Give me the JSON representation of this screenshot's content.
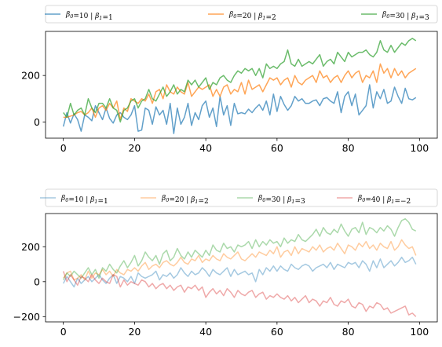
{
  "chart_data": [
    {
      "type": "line",
      "title": "",
      "xlabel": "",
      "ylabel": "",
      "xlim": [
        -5,
        105
      ],
      "ylim": [
        -70,
        390
      ],
      "xticks": [
        0,
        20,
        40,
        60,
        80,
        100
      ],
      "yticks": [
        0,
        200
      ],
      "grid": false,
      "legend_position": "above, spanning width, 3 columns",
      "line_alpha": 0.7,
      "x": [
        0,
        1,
        2,
        3,
        4,
        5,
        6,
        7,
        8,
        9,
        10,
        11,
        12,
        13,
        14,
        15,
        16,
        17,
        18,
        19,
        20,
        21,
        22,
        23,
        24,
        25,
        26,
        27,
        28,
        29,
        30,
        31,
        32,
        33,
        34,
        35,
        36,
        37,
        38,
        39,
        40,
        41,
        42,
        43,
        44,
        45,
        46,
        47,
        48,
        49,
        50,
        51,
        52,
        53,
        54,
        55,
        56,
        57,
        58,
        59,
        60,
        61,
        62,
        63,
        64,
        65,
        66,
        67,
        68,
        69,
        70,
        71,
        72,
        73,
        74,
        75,
        76,
        77,
        78,
        79,
        80,
        81,
        82,
        83,
        84,
        85,
        86,
        87,
        88,
        89,
        90,
        91,
        92,
        93,
        94,
        95,
        96,
        97,
        98,
        99
      ],
      "series": [
        {
          "name": "β0=10 | β1=1",
          "color": "#1f77b4",
          "values": [
            -20,
            40,
            -5,
            35,
            10,
            -40,
            30,
            20,
            5,
            70,
            40,
            10,
            60,
            15,
            -5,
            30,
            40,
            20,
            10,
            30,
            70,
            -40,
            -35,
            60,
            50,
            -10,
            65,
            30,
            50,
            -10,
            80,
            -50,
            60,
            -10,
            20,
            80,
            -15,
            40,
            10,
            70,
            90,
            20,
            60,
            -20,
            110,
            30,
            70,
            -15,
            80,
            35,
            40,
            35,
            55,
            40,
            60,
            75,
            50,
            90,
            30,
            120,
            45,
            110,
            75,
            50,
            70,
            110,
            90,
            100,
            80,
            80,
            90,
            95,
            70,
            100,
            105,
            90,
            80,
            130,
            40,
            110,
            130,
            70,
            120,
            30,
            50,
            70,
            160,
            60,
            130,
            100,
            140,
            80,
            90,
            150,
            110,
            80,
            145,
            100,
            95,
            105
          ]
        },
        {
          "name": "β0=20 | β1=2",
          "color": "#ff7f0e",
          "values": [
            20,
            20,
            25,
            30,
            40,
            45,
            30,
            40,
            60,
            20,
            60,
            70,
            50,
            80,
            60,
            90,
            10,
            60,
            45,
            100,
            90,
            80,
            100,
            90,
            120,
            80,
            130,
            140,
            100,
            160,
            130,
            120,
            150,
            130,
            120,
            170,
            110,
            130,
            150,
            140,
            150,
            160,
            110,
            140,
            110,
            150,
            160,
            120,
            140,
            130,
            170,
            120,
            180,
            140,
            150,
            160,
            130,
            160,
            190,
            180,
            190,
            160,
            180,
            190,
            150,
            200,
            170,
            160,
            180,
            190,
            200,
            170,
            220,
            190,
            200,
            170,
            190,
            200,
            170,
            200,
            220,
            190,
            210,
            220,
            170,
            200,
            190,
            220,
            170,
            250,
            210,
            230,
            190,
            230,
            200,
            220,
            190,
            210,
            220,
            230
          ]
        },
        {
          "name": "β0=30 | β1=3",
          "color": "#2ca02c",
          "values": [
            40,
            20,
            80,
            30,
            50,
            60,
            30,
            100,
            60,
            40,
            80,
            80,
            60,
            100,
            60,
            50,
            0,
            50,
            60,
            90,
            100,
            60,
            90,
            100,
            140,
            100,
            90,
            120,
            150,
            110,
            130,
            160,
            120,
            140,
            130,
            180,
            160,
            180,
            150,
            170,
            190,
            140,
            170,
            160,
            190,
            200,
            180,
            170,
            200,
            220,
            210,
            230,
            220,
            230,
            200,
            230,
            190,
            250,
            230,
            240,
            230,
            250,
            260,
            310,
            250,
            240,
            270,
            240,
            250,
            260,
            250,
            270,
            290,
            240,
            260,
            270,
            250,
            300,
            280,
            260,
            300,
            280,
            290,
            300,
            300,
            310,
            290,
            280,
            300,
            350,
            310,
            300,
            330,
            300,
            320,
            340,
            330,
            350,
            360,
            350
          ]
        }
      ]
    },
    {
      "type": "line",
      "title": "",
      "xlabel": "",
      "ylabel": "",
      "xlim": [
        -5,
        105
      ],
      "ylim": [
        -230,
        390
      ],
      "xticks": [
        0,
        20,
        40,
        60,
        80,
        100
      ],
      "yticks": [
        -200,
        0,
        200
      ],
      "grid": false,
      "legend_position": "above, spanning width, 4 columns",
      "line_alpha": 0.4,
      "x": [
        0,
        1,
        2,
        3,
        4,
        5,
        6,
        7,
        8,
        9,
        10,
        11,
        12,
        13,
        14,
        15,
        16,
        17,
        18,
        19,
        20,
        21,
        22,
        23,
        24,
        25,
        26,
        27,
        28,
        29,
        30,
        31,
        32,
        33,
        34,
        35,
        36,
        37,
        38,
        39,
        40,
        41,
        42,
        43,
        44,
        45,
        46,
        47,
        48,
        49,
        50,
        51,
        52,
        53,
        54,
        55,
        56,
        57,
        58,
        59,
        60,
        61,
        62,
        63,
        64,
        65,
        66,
        67,
        68,
        69,
        70,
        71,
        72,
        73,
        74,
        75,
        76,
        77,
        78,
        79,
        80,
        81,
        82,
        83,
        84,
        85,
        86,
        87,
        88,
        89,
        90,
        91,
        92,
        93,
        94,
        95,
        96,
        97,
        98,
        99
      ],
      "series": [
        {
          "name": "β0=10 | β1=1",
          "color": "#1f77b4",
          "values": [
            -10,
            30,
            0,
            -30,
            20,
            -10,
            10,
            30,
            0,
            20,
            40,
            10,
            -10,
            20,
            40,
            -10,
            30,
            20,
            0,
            30,
            -10,
            50,
            30,
            20,
            30,
            40,
            60,
            10,
            40,
            30,
            50,
            20,
            40,
            80,
            50,
            30,
            60,
            40,
            50,
            80,
            60,
            30,
            70,
            50,
            40,
            60,
            80,
            30,
            70,
            40,
            50,
            60,
            40,
            50,
            0,
            70,
            40,
            80,
            60,
            90,
            60,
            90,
            70,
            60,
            100,
            80,
            70,
            90,
            100,
            90,
            60,
            80,
            90,
            100,
            80,
            110,
            70,
            100,
            90,
            80,
            110,
            100,
            110,
            80,
            120,
            100,
            60,
            120,
            80,
            130,
            80,
            100,
            120,
            90,
            110,
            140,
            110,
            120,
            140,
            100
          ]
        },
        {
          "name": "β0=20 | β1=2",
          "color": "#ff7f0e",
          "values": [
            20,
            50,
            60,
            10,
            20,
            40,
            10,
            60,
            20,
            50,
            40,
            70,
            40,
            60,
            30,
            70,
            50,
            40,
            70,
            60,
            80,
            60,
            90,
            110,
            70,
            90,
            100,
            80,
            110,
            120,
            100,
            90,
            110,
            140,
            110,
            100,
            130,
            120,
            150,
            110,
            130,
            120,
            150,
            130,
            120,
            160,
            140,
            130,
            150,
            170,
            130,
            120,
            140,
            160,
            140,
            170,
            160,
            150,
            180,
            160,
            200,
            140,
            170,
            180,
            150,
            200,
            160,
            190,
            180,
            170,
            200,
            180,
            210,
            170,
            190,
            200,
            180,
            220,
            190,
            160,
            210,
            200,
            180,
            220,
            200,
            230,
            190,
            210,
            180,
            220,
            200,
            190,
            230,
            180,
            200,
            240,
            210,
            190,
            200,
            150
          ]
        },
        {
          "name": "β0=30 | β1=3",
          "color": "#2ca02c",
          "values": [
            10,
            50,
            30,
            60,
            40,
            20,
            50,
            80,
            40,
            70,
            20,
            80,
            60,
            100,
            70,
            50,
            90,
            120,
            80,
            110,
            150,
            90,
            120,
            170,
            140,
            120,
            150,
            100,
            160,
            180,
            120,
            140,
            190,
            150,
            130,
            170,
            140,
            180,
            160,
            140,
            180,
            150,
            210,
            180,
            170,
            220,
            190,
            200,
            170,
            210,
            200,
            210,
            230,
            190,
            240,
            200,
            230,
            210,
            240,
            220,
            230,
            200,
            250,
            220,
            240,
            230,
            270,
            240,
            230,
            250,
            270,
            300,
            260,
            310,
            280,
            270,
            300,
            280,
            330,
            290,
            260,
            300,
            310,
            280,
            340,
            270,
            310,
            300,
            280,
            310,
            290,
            320,
            300,
            260,
            310,
            350,
            360,
            340,
            300,
            290
          ]
        },
        {
          "name": "β0=40 | β1=−2",
          "color": "#d62728",
          "values": [
            60,
            0,
            40,
            10,
            -20,
            30,
            20,
            0,
            40,
            10,
            -10,
            20,
            0,
            -10,
            40,
            30,
            -30,
            10,
            -20,
            0,
            -10,
            -20,
            10,
            0,
            -30,
            -10,
            -40,
            -20,
            -10,
            -40,
            -20,
            -50,
            -30,
            -20,
            -60,
            -30,
            -40,
            -20,
            -50,
            -30,
            -90,
            -60,
            -40,
            -70,
            -50,
            -80,
            -40,
            -60,
            -90,
            -50,
            -70,
            -80,
            -60,
            -50,
            -90,
            -70,
            -60,
            -100,
            -80,
            -90,
            -70,
            -90,
            -100,
            -80,
            -110,
            -90,
            -120,
            -100,
            -80,
            -120,
            -100,
            -110,
            -140,
            -110,
            -120,
            -90,
            -130,
            -140,
            -110,
            -120,
            -100,
            -140,
            -150,
            -120,
            -130,
            -170,
            -140,
            -150,
            -120,
            -130,
            -160,
            -150,
            -180,
            -170,
            -160,
            -150,
            -140,
            -190,
            -180,
            -200
          ]
        }
      ]
    }
  ]
}
